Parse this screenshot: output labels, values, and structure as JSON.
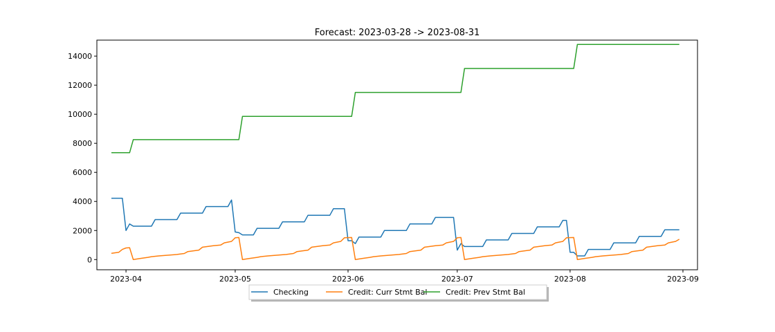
{
  "chart_data": {
    "type": "line",
    "title": "Forecast: 2023-03-28 -> 2023-08-31",
    "xlabel": "",
    "ylabel": "",
    "x_range": [
      "2023-03-24",
      "2023-09-05"
    ],
    "ylim": [
      -700,
      15100
    ],
    "x_ticks": [
      "2023-04",
      "2023-05",
      "2023-06",
      "2023-07",
      "2023-08",
      "2023-09"
    ],
    "x_tick_dates": [
      "2023-04-01",
      "2023-05-01",
      "2023-06-01",
      "2023-07-01",
      "2023-08-01",
      "2023-09-01"
    ],
    "y_ticks": [
      0,
      2000,
      4000,
      6000,
      8000,
      10000,
      12000,
      14000
    ],
    "grid": false,
    "legend_position": "bottom-center",
    "series": [
      {
        "name": "Checking",
        "color": "#1f77b4",
        "points": [
          [
            "2023-03-28",
            4220
          ],
          [
            "2023-03-31",
            4220
          ],
          [
            "2023-04-01",
            2000
          ],
          [
            "2023-04-02",
            2450
          ],
          [
            "2023-04-03",
            2300
          ],
          [
            "2023-04-08",
            2300
          ],
          [
            "2023-04-09",
            2750
          ],
          [
            "2023-04-15",
            2750
          ],
          [
            "2023-04-16",
            3200
          ],
          [
            "2023-04-22",
            3200
          ],
          [
            "2023-04-23",
            3650
          ],
          [
            "2023-04-29",
            3650
          ],
          [
            "2023-04-30",
            4100
          ],
          [
            "2023-05-01",
            1900
          ],
          [
            "2023-05-02",
            1850
          ],
          [
            "2023-05-03",
            1700
          ],
          [
            "2023-05-06",
            1700
          ],
          [
            "2023-05-07",
            2150
          ],
          [
            "2023-05-13",
            2150
          ],
          [
            "2023-05-14",
            2600
          ],
          [
            "2023-05-20",
            2600
          ],
          [
            "2023-05-21",
            3050
          ],
          [
            "2023-05-27",
            3050
          ],
          [
            "2023-05-28",
            3500
          ],
          [
            "2023-05-31",
            3500
          ],
          [
            "2023-06-01",
            1300
          ],
          [
            "2023-06-02",
            1300
          ],
          [
            "2023-06-03",
            1100
          ],
          [
            "2023-06-04",
            1550
          ],
          [
            "2023-06-10",
            1550
          ],
          [
            "2023-06-11",
            2000
          ],
          [
            "2023-06-17",
            2000
          ],
          [
            "2023-06-18",
            2450
          ],
          [
            "2023-06-24",
            2450
          ],
          [
            "2023-06-25",
            2900
          ],
          [
            "2023-06-30",
            2900
          ],
          [
            "2023-07-01",
            650
          ],
          [
            "2023-07-02",
            1100
          ],
          [
            "2023-07-03",
            900
          ],
          [
            "2023-07-08",
            900
          ],
          [
            "2023-07-09",
            1350
          ],
          [
            "2023-07-15",
            1350
          ],
          [
            "2023-07-16",
            1800
          ],
          [
            "2023-07-22",
            1800
          ],
          [
            "2023-07-23",
            2250
          ],
          [
            "2023-07-29",
            2250
          ],
          [
            "2023-07-30",
            2700
          ],
          [
            "2023-07-31",
            2700
          ],
          [
            "2023-08-01",
            500
          ],
          [
            "2023-08-02",
            500
          ],
          [
            "2023-08-03",
            250
          ],
          [
            "2023-08-05",
            250
          ],
          [
            "2023-08-06",
            700
          ],
          [
            "2023-08-12",
            700
          ],
          [
            "2023-08-13",
            1150
          ],
          [
            "2023-08-19",
            1150
          ],
          [
            "2023-08-20",
            1600
          ],
          [
            "2023-08-26",
            1600
          ],
          [
            "2023-08-27",
            2050
          ],
          [
            "2023-08-31",
            2050
          ]
        ]
      },
      {
        "name": "Credit: Curr Stmt Bal",
        "color": "#ff7f0e",
        "points": [
          [
            "2023-03-28",
            430
          ],
          [
            "2023-03-30",
            500
          ],
          [
            "2023-03-31",
            700
          ],
          [
            "2023-04-01",
            800
          ],
          [
            "2023-04-02",
            820
          ],
          [
            "2023-04-03",
            0
          ],
          [
            "2023-04-05",
            80
          ],
          [
            "2023-04-07",
            150
          ],
          [
            "2023-04-08",
            200
          ],
          [
            "2023-04-10",
            250
          ],
          [
            "2023-04-15",
            350
          ],
          [
            "2023-04-17",
            420
          ],
          [
            "2023-04-18",
            550
          ],
          [
            "2023-04-21",
            650
          ],
          [
            "2023-04-22",
            850
          ],
          [
            "2023-04-25",
            950
          ],
          [
            "2023-04-27",
            1000
          ],
          [
            "2023-04-28",
            1150
          ],
          [
            "2023-04-30",
            1250
          ],
          [
            "2023-05-01",
            1500
          ],
          [
            "2023-05-02",
            1520
          ],
          [
            "2023-05-03",
            0
          ],
          [
            "2023-05-05",
            80
          ],
          [
            "2023-05-07",
            150
          ],
          [
            "2023-05-08",
            200
          ],
          [
            "2023-05-10",
            250
          ],
          [
            "2023-05-15",
            350
          ],
          [
            "2023-05-17",
            420
          ],
          [
            "2023-05-18",
            550
          ],
          [
            "2023-05-21",
            650
          ],
          [
            "2023-05-22",
            850
          ],
          [
            "2023-05-25",
            950
          ],
          [
            "2023-05-27",
            1000
          ],
          [
            "2023-05-28",
            1150
          ],
          [
            "2023-05-30",
            1250
          ],
          [
            "2023-05-31",
            1500
          ],
          [
            "2023-06-02",
            1520
          ],
          [
            "2023-06-03",
            0
          ],
          [
            "2023-06-05",
            80
          ],
          [
            "2023-06-07",
            150
          ],
          [
            "2023-06-08",
            200
          ],
          [
            "2023-06-10",
            250
          ],
          [
            "2023-06-15",
            350
          ],
          [
            "2023-06-17",
            420
          ],
          [
            "2023-06-18",
            550
          ],
          [
            "2023-06-21",
            650
          ],
          [
            "2023-06-22",
            850
          ],
          [
            "2023-06-25",
            950
          ],
          [
            "2023-06-27",
            1000
          ],
          [
            "2023-06-28",
            1150
          ],
          [
            "2023-06-30",
            1250
          ],
          [
            "2023-07-01",
            1500
          ],
          [
            "2023-07-02",
            1520
          ],
          [
            "2023-07-03",
            0
          ],
          [
            "2023-07-05",
            80
          ],
          [
            "2023-07-07",
            150
          ],
          [
            "2023-07-08",
            200
          ],
          [
            "2023-07-10",
            250
          ],
          [
            "2023-07-15",
            350
          ],
          [
            "2023-07-17",
            420
          ],
          [
            "2023-07-18",
            550
          ],
          [
            "2023-07-21",
            650
          ],
          [
            "2023-07-22",
            850
          ],
          [
            "2023-07-25",
            950
          ],
          [
            "2023-07-27",
            1000
          ],
          [
            "2023-07-28",
            1150
          ],
          [
            "2023-07-30",
            1250
          ],
          [
            "2023-07-31",
            1500
          ],
          [
            "2023-08-02",
            1520
          ],
          [
            "2023-08-03",
            0
          ],
          [
            "2023-08-05",
            80
          ],
          [
            "2023-08-07",
            150
          ],
          [
            "2023-08-08",
            200
          ],
          [
            "2023-08-10",
            250
          ],
          [
            "2023-08-15",
            350
          ],
          [
            "2023-08-17",
            420
          ],
          [
            "2023-08-18",
            550
          ],
          [
            "2023-08-21",
            650
          ],
          [
            "2023-08-22",
            850
          ],
          [
            "2023-08-25",
            950
          ],
          [
            "2023-08-27",
            1000
          ],
          [
            "2023-08-28",
            1150
          ],
          [
            "2023-08-30",
            1250
          ],
          [
            "2023-08-31",
            1400
          ]
        ]
      },
      {
        "name": "Credit: Prev Stmt Bal",
        "color": "#2ca02c",
        "points": [
          [
            "2023-03-28",
            7350
          ],
          [
            "2023-04-02",
            7350
          ],
          [
            "2023-04-03",
            8250
          ],
          [
            "2023-05-02",
            8250
          ],
          [
            "2023-05-03",
            9850
          ],
          [
            "2023-06-02",
            9850
          ],
          [
            "2023-06-03",
            11500
          ],
          [
            "2023-07-02",
            11500
          ],
          [
            "2023-07-03",
            13150
          ],
          [
            "2023-08-02",
            13150
          ],
          [
            "2023-08-03",
            14800
          ],
          [
            "2023-08-31",
            14800
          ]
        ]
      }
    ]
  }
}
